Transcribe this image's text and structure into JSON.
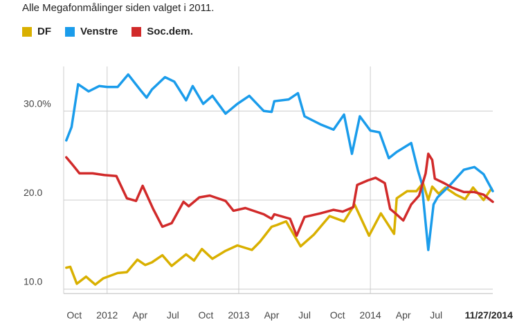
{
  "chart_data": {
    "type": "line",
    "title": "Alle Megafonmålinger siden valget i 2011.",
    "xlabel": "",
    "ylabel": "",
    "grid": true,
    "legend_position": "top-left",
    "x_range": [
      2011.67,
      2014.93
    ],
    "ylim": [
      9.5,
      35
    ],
    "y_ticks": [
      {
        "value": 10,
        "label": "10.0"
      },
      {
        "value": 20,
        "label": "20.0"
      },
      {
        "value": 30,
        "label": "30.0%"
      }
    ],
    "x_ticks": [
      {
        "value": 2011.75,
        "label": "Oct",
        "bold": false
      },
      {
        "value": 2012.0,
        "label": "2012",
        "bold": false
      },
      {
        "value": 2012.25,
        "label": "Apr",
        "bold": false
      },
      {
        "value": 2012.5,
        "label": "Jul",
        "bold": false
      },
      {
        "value": 2012.75,
        "label": "Oct",
        "bold": false
      },
      {
        "value": 2013.0,
        "label": "2013",
        "bold": false
      },
      {
        "value": 2013.25,
        "label": "Apr",
        "bold": false
      },
      {
        "value": 2013.5,
        "label": "Jul",
        "bold": false
      },
      {
        "value": 2013.75,
        "label": "Oct",
        "bold": false
      },
      {
        "value": 2014.0,
        "label": "2014",
        "bold": false
      },
      {
        "value": 2014.25,
        "label": "Apr",
        "bold": false
      },
      {
        "value": 2014.5,
        "label": "Jul",
        "bold": false
      },
      {
        "value": 2014.9,
        "label": "11/27/2014",
        "bold": true
      }
    ],
    "x_gridlines": [
      2012.0,
      2013.0,
      2014.0
    ],
    "series": [
      {
        "name": "DF",
        "color": "#d9b000",
        "points": [
          [
            2011.69,
            12.4
          ],
          [
            2011.72,
            12.5
          ],
          [
            2011.77,
            10.6
          ],
          [
            2011.84,
            11.4
          ],
          [
            2011.91,
            10.5
          ],
          [
            2011.97,
            11.2
          ],
          [
            2012.08,
            11.8
          ],
          [
            2012.15,
            11.9
          ],
          [
            2012.23,
            13.3
          ],
          [
            2012.29,
            12.7
          ],
          [
            2012.34,
            13.0
          ],
          [
            2012.42,
            13.8
          ],
          [
            2012.49,
            12.6
          ],
          [
            2012.6,
            13.9
          ],
          [
            2012.66,
            13.2
          ],
          [
            2012.72,
            14.5
          ],
          [
            2012.8,
            13.4
          ],
          [
            2012.9,
            14.3
          ],
          [
            2012.99,
            14.9
          ],
          [
            2013.1,
            14.4
          ],
          [
            2013.16,
            15.3
          ],
          [
            2013.25,
            17.0
          ],
          [
            2013.29,
            17.2
          ],
          [
            2013.36,
            17.6
          ],
          [
            2013.47,
            14.8
          ],
          [
            2013.57,
            16.1
          ],
          [
            2013.69,
            18.2
          ],
          [
            2013.8,
            17.6
          ],
          [
            2013.88,
            19.5
          ],
          [
            2013.99,
            16.0
          ],
          [
            2014.08,
            18.5
          ],
          [
            2014.18,
            16.2
          ],
          [
            2014.2,
            20.2
          ],
          [
            2014.28,
            21.0
          ],
          [
            2014.35,
            21.0
          ],
          [
            2014.4,
            21.9
          ],
          [
            2014.44,
            20.0
          ],
          [
            2014.47,
            21.5
          ],
          [
            2014.52,
            20.7
          ],
          [
            2014.57,
            21.4
          ],
          [
            2014.65,
            20.6
          ],
          [
            2014.72,
            20.1
          ],
          [
            2014.78,
            21.4
          ],
          [
            2014.86,
            20.0
          ],
          [
            2014.92,
            21.3
          ]
        ]
      },
      {
        "name": "Venstre",
        "color": "#1a9ceb",
        "points": [
          [
            2011.69,
            26.7
          ],
          [
            2011.73,
            28.2
          ],
          [
            2011.78,
            33.0
          ],
          [
            2011.86,
            32.2
          ],
          [
            2011.94,
            32.8
          ],
          [
            2012.0,
            32.7
          ],
          [
            2012.08,
            32.7
          ],
          [
            2012.16,
            34.1
          ],
          [
            2012.25,
            32.4
          ],
          [
            2012.3,
            31.5
          ],
          [
            2012.34,
            32.4
          ],
          [
            2012.44,
            33.8
          ],
          [
            2012.51,
            33.3
          ],
          [
            2012.6,
            31.2
          ],
          [
            2012.65,
            32.8
          ],
          [
            2012.73,
            30.8
          ],
          [
            2012.8,
            31.7
          ],
          [
            2012.9,
            29.7
          ],
          [
            2012.99,
            30.8
          ],
          [
            2013.08,
            31.7
          ],
          [
            2013.19,
            30.0
          ],
          [
            2013.25,
            29.9
          ],
          [
            2013.27,
            31.1
          ],
          [
            2013.38,
            31.3
          ],
          [
            2013.45,
            32.0
          ],
          [
            2013.5,
            29.4
          ],
          [
            2013.62,
            28.5
          ],
          [
            2013.72,
            27.9
          ],
          [
            2013.8,
            29.6
          ],
          [
            2013.86,
            25.2
          ],
          [
            2013.92,
            29.4
          ],
          [
            2014.0,
            27.8
          ],
          [
            2014.07,
            27.6
          ],
          [
            2014.14,
            24.7
          ],
          [
            2014.2,
            25.4
          ],
          [
            2014.31,
            26.4
          ],
          [
            2014.36,
            23.4
          ],
          [
            2014.39,
            21.9
          ],
          [
            2014.44,
            14.4
          ],
          [
            2014.48,
            19.5
          ],
          [
            2014.51,
            20.3
          ],
          [
            2014.6,
            21.6
          ],
          [
            2014.71,
            23.4
          ],
          [
            2014.79,
            23.7
          ],
          [
            2014.86,
            22.9
          ],
          [
            2014.93,
            21.0
          ]
        ]
      },
      {
        "name": "Soc.dem.",
        "color": "#d12a2a",
        "points": [
          [
            2011.69,
            24.8
          ],
          [
            2011.73,
            24.1
          ],
          [
            2011.79,
            23.0
          ],
          [
            2011.89,
            23.0
          ],
          [
            2011.98,
            22.8
          ],
          [
            2012.07,
            22.7
          ],
          [
            2012.15,
            20.2
          ],
          [
            2012.22,
            19.9
          ],
          [
            2012.27,
            21.6
          ],
          [
            2012.35,
            19.0
          ],
          [
            2012.42,
            17.0
          ],
          [
            2012.49,
            17.4
          ],
          [
            2012.58,
            19.8
          ],
          [
            2012.62,
            19.3
          ],
          [
            2012.7,
            20.3
          ],
          [
            2012.78,
            20.5
          ],
          [
            2012.84,
            20.2
          ],
          [
            2012.9,
            19.9
          ],
          [
            2012.96,
            18.8
          ],
          [
            2013.05,
            19.1
          ],
          [
            2013.19,
            18.4
          ],
          [
            2013.25,
            17.9
          ],
          [
            2013.27,
            18.4
          ],
          [
            2013.39,
            17.9
          ],
          [
            2013.44,
            16.0
          ],
          [
            2013.5,
            18.1
          ],
          [
            2013.62,
            18.5
          ],
          [
            2013.72,
            18.9
          ],
          [
            2013.79,
            18.7
          ],
          [
            2013.87,
            19.2
          ],
          [
            2013.9,
            21.7
          ],
          [
            2013.98,
            22.2
          ],
          [
            2014.04,
            22.5
          ],
          [
            2014.11,
            21.9
          ],
          [
            2014.15,
            19.0
          ],
          [
            2014.19,
            18.5
          ],
          [
            2014.25,
            17.7
          ],
          [
            2014.31,
            19.5
          ],
          [
            2014.37,
            20.5
          ],
          [
            2014.42,
            23.0
          ],
          [
            2014.44,
            25.2
          ],
          [
            2014.47,
            24.5
          ],
          [
            2014.49,
            22.4
          ],
          [
            2014.56,
            21.9
          ],
          [
            2014.62,
            21.4
          ],
          [
            2014.71,
            20.9
          ],
          [
            2014.79,
            20.9
          ],
          [
            2014.86,
            20.6
          ],
          [
            2014.93,
            19.8
          ]
        ]
      }
    ]
  }
}
